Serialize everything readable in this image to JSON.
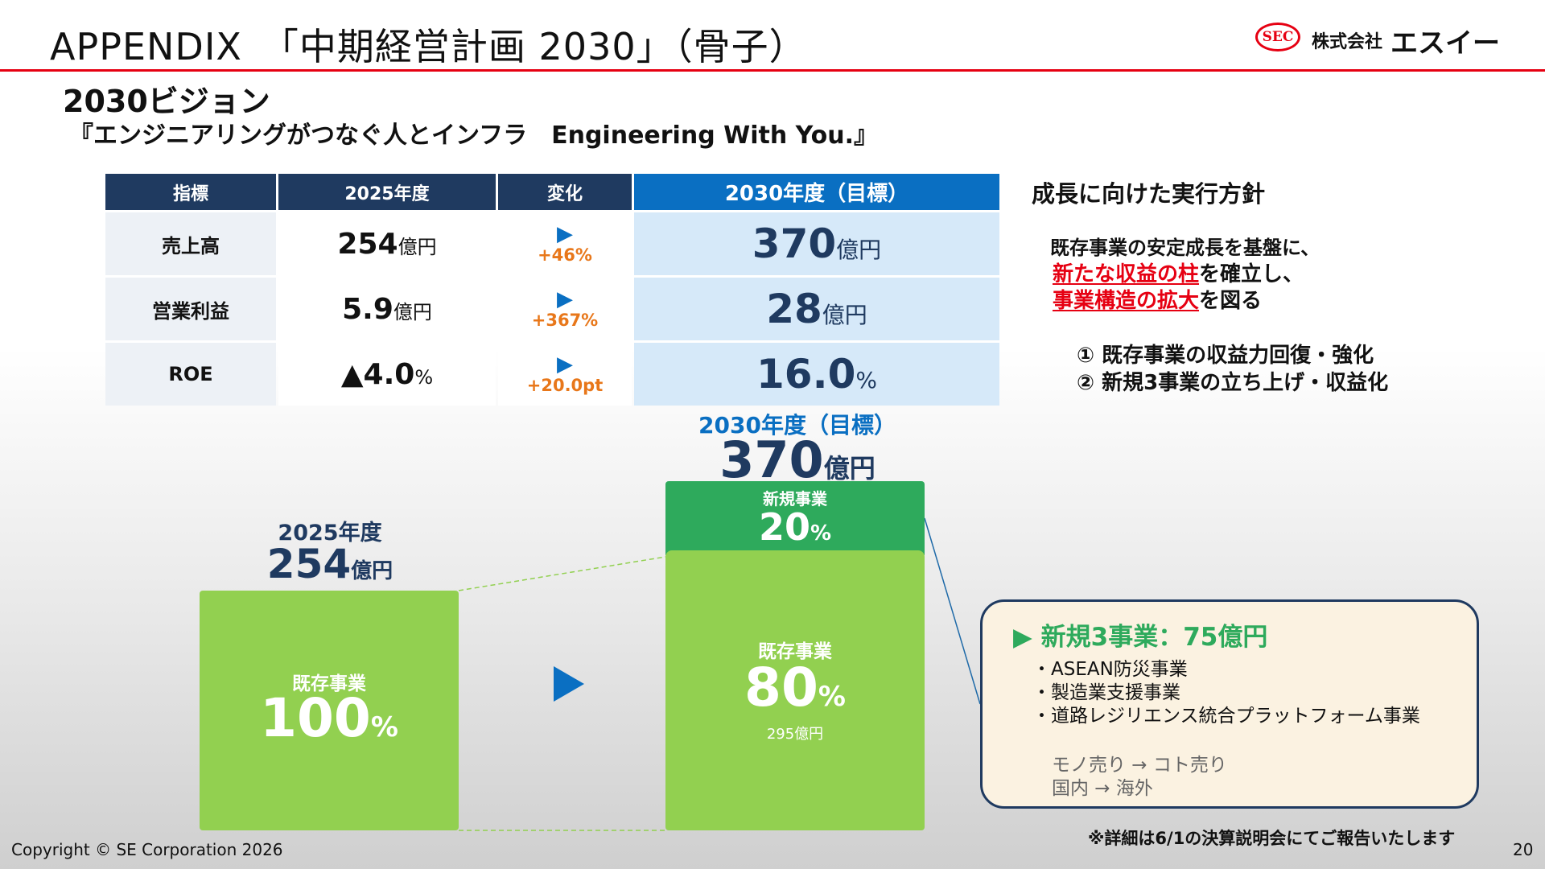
{
  "header": {
    "title": "APPENDIX　「中期経営計画 2030」（骨子）",
    "logo_mark": "SEC",
    "logo_prefix": "株式会社",
    "logo_name": "エスイー"
  },
  "vision": {
    "heading": "2030ビジョン",
    "slogan": "『エンジニアリングがつなぐ人とインフラ　Engineering With You.』"
  },
  "table": {
    "headers": [
      "指標",
      "2025年度",
      "変化",
      "2030年度（目標）"
    ],
    "rows": [
      {
        "label": "売上高",
        "current": "254",
        "current_unit": "億円",
        "arrow": "▶",
        "change": "+46%",
        "target": "370",
        "target_unit": "億円"
      },
      {
        "label": "営業利益",
        "current": "5.9",
        "current_unit": "億円",
        "arrow": "▶",
        "change": "+367%",
        "target": "28",
        "target_unit": "億円"
      },
      {
        "label": "ROE",
        "current": "▲4.0",
        "current_unit": "%",
        "arrow": "▶",
        "change": "+20.0pt",
        "target": "16.0",
        "target_unit": "%"
      }
    ]
  },
  "policy": {
    "title": "成長に向けた実行方針",
    "line1": "既存事業の安定成長を基盤に、",
    "line2_red": "新たな収益の柱",
    "line2_rest": "を確立し、",
    "line3_red": "事業構造の拡大",
    "line3_rest": "を図る",
    "items": [
      "① 既存事業の収益力回復・強化",
      "② 新規3事業の立ち上げ・収益化"
    ]
  },
  "bars": {
    "fy2025": {
      "year": "2025年度",
      "value": "254",
      "unit": "億円",
      "segment_label": "既存事業",
      "pct": "100",
      "pct_unit": "%"
    },
    "fy2030": {
      "year": "2030年度（目標）",
      "value": "370",
      "unit": "億円",
      "new_label": "新規事業",
      "new_pct": "20",
      "new_pct_unit": "%",
      "existing_label": "既存事業",
      "existing_pct": "80",
      "existing_pct_unit": "%",
      "existing_amount": "295億円"
    }
  },
  "callout": {
    "title": "▶ 新規3事業：75億円",
    "bullets": [
      "・ASEAN防災事業",
      "・製造業支援事業",
      "・道路レジリエンス統合プラットフォーム事業"
    ],
    "notes": [
      "モノ売り → コト売り",
      "国内 → 海外"
    ]
  },
  "footer": {
    "note": "※詳細は6/1の決算説明会にてご報告いたします",
    "copyright": "Copyright © SE Corporation 2026",
    "page": "20"
  },
  "colors": {
    "accent_red": "#e60012",
    "navy": "#1f3a60",
    "blue": "#0a6fc2",
    "green_light": "#92d050",
    "green_dark": "#2eaa5c",
    "orange": "#e8771a"
  }
}
